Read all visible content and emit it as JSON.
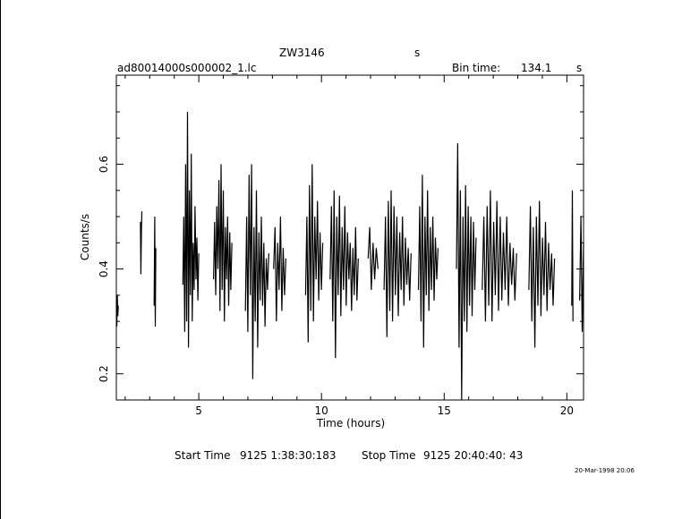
{
  "header": {
    "object": "ZW3146",
    "object_suffix": "s",
    "filename": "ad80014000s000002_1.lc",
    "bin_label": "Bin time:",
    "bin_value": "134.1",
    "bin_unit": "s"
  },
  "footer": {
    "start_label": "Start Time",
    "start_value": "9125  1:38:30:183",
    "stop_label": "Stop Time",
    "stop_value": "9125 20:40:40: 43",
    "stamp": "20-Mar-1998 20:06"
  },
  "chart_data": {
    "type": "line",
    "xlabel": "Time (hours)",
    "ylabel": "Counts/s",
    "xlim": [
      1.64,
      20.68
    ],
    "ylim": [
      0.15,
      0.77
    ],
    "x_ticks": [
      {
        "value": 5,
        "label": "5"
      },
      {
        "value": 10,
        "label": "10"
      },
      {
        "value": 15,
        "label": "15"
      },
      {
        "value": 20,
        "label": "20"
      }
    ],
    "y_ticks": [
      {
        "value": 0.2,
        "label": "0.2"
      },
      {
        "value": 0.4,
        "label": "0.4"
      },
      {
        "value": 0.6,
        "label": "0.6"
      }
    ],
    "segments": [
      {
        "start": 1.64,
        "end": 1.72,
        "values": [
          0.33,
          0.29,
          0.35,
          0.31,
          0.33
        ]
      },
      {
        "start": 2.62,
        "end": 2.68,
        "values": [
          0.49,
          0.39,
          0.47,
          0.51
        ]
      },
      {
        "start": 3.18,
        "end": 3.25,
        "values": [
          0.33,
          0.5,
          0.29,
          0.44
        ]
      },
      {
        "start": 4.35,
        "end": 5.0,
        "values": [
          0.37,
          0.5,
          0.28,
          0.6,
          0.3,
          0.7,
          0.25,
          0.55,
          0.35,
          0.62,
          0.3,
          0.45,
          0.36,
          0.52,
          0.38,
          0.46,
          0.34,
          0.43
        ]
      },
      {
        "start": 5.6,
        "end": 6.35,
        "values": [
          0.38,
          0.49,
          0.35,
          0.52,
          0.4,
          0.57,
          0.32,
          0.6,
          0.36,
          0.55,
          0.3,
          0.48,
          0.38,
          0.5,
          0.33,
          0.47,
          0.36,
          0.45
        ]
      },
      {
        "start": 6.9,
        "end": 7.85,
        "values": [
          0.32,
          0.5,
          0.28,
          0.58,
          0.35,
          0.6,
          0.19,
          0.48,
          0.3,
          0.55,
          0.25,
          0.47,
          0.34,
          0.5,
          0.33,
          0.45,
          0.29,
          0.42,
          0.36,
          0.43
        ]
      },
      {
        "start": 8.05,
        "end": 8.55,
        "values": [
          0.4,
          0.48,
          0.3,
          0.45,
          0.36,
          0.5,
          0.32,
          0.44,
          0.35,
          0.42
        ]
      },
      {
        "start": 9.35,
        "end": 10.05,
        "values": [
          0.35,
          0.5,
          0.26,
          0.56,
          0.32,
          0.6,
          0.3,
          0.5,
          0.38,
          0.53,
          0.34,
          0.47,
          0.36,
          0.45
        ]
      },
      {
        "start": 10.35,
        "end": 11.5,
        "values": [
          0.38,
          0.52,
          0.3,
          0.55,
          0.23,
          0.5,
          0.35,
          0.54,
          0.31,
          0.48,
          0.36,
          0.52,
          0.33,
          0.47,
          0.38,
          0.45,
          0.32,
          0.44,
          0.35,
          0.48,
          0.34,
          0.42
        ]
      },
      {
        "start": 11.9,
        "end": 12.3,
        "values": [
          0.42,
          0.48,
          0.36,
          0.45,
          0.38,
          0.44,
          0.4
        ]
      },
      {
        "start": 12.55,
        "end": 13.65,
        "values": [
          0.36,
          0.5,
          0.27,
          0.53,
          0.32,
          0.55,
          0.3,
          0.52,
          0.35,
          0.5,
          0.31,
          0.47,
          0.36,
          0.5,
          0.33,
          0.46,
          0.37,
          0.44,
          0.34,
          0.43
        ]
      },
      {
        "start": 13.95,
        "end": 14.75,
        "values": [
          0.36,
          0.52,
          0.3,
          0.58,
          0.25,
          0.5,
          0.35,
          0.55,
          0.32,
          0.48,
          0.36,
          0.5,
          0.34,
          0.46,
          0.38,
          0.44
        ]
      },
      {
        "start": 15.5,
        "end": 16.3,
        "values": [
          0.4,
          0.64,
          0.25,
          0.55,
          0.15,
          0.5,
          0.3,
          0.56,
          0.28,
          0.52,
          0.33,
          0.5,
          0.31,
          0.49,
          0.36,
          0.46
        ]
      },
      {
        "start": 16.55,
        "end": 17.95,
        "values": [
          0.36,
          0.5,
          0.3,
          0.52,
          0.33,
          0.55,
          0.3,
          0.49,
          0.35,
          0.53,
          0.32,
          0.5,
          0.34,
          0.47,
          0.36,
          0.5,
          0.33,
          0.45,
          0.37,
          0.44,
          0.34,
          0.43
        ]
      },
      {
        "start": 18.45,
        "end": 19.5,
        "values": [
          0.36,
          0.52,
          0.3,
          0.48,
          0.25,
          0.5,
          0.33,
          0.53,
          0.31,
          0.46,
          0.35,
          0.49,
          0.32,
          0.45,
          0.36,
          0.43,
          0.33,
          0.42
        ]
      },
      {
        "start": 20.2,
        "end": 20.25,
        "values": [
          0.33,
          0.55,
          0.3
        ]
      },
      {
        "start": 20.52,
        "end": 20.68,
        "values": [
          0.34,
          0.5,
          0.28,
          0.45
        ]
      }
    ]
  }
}
